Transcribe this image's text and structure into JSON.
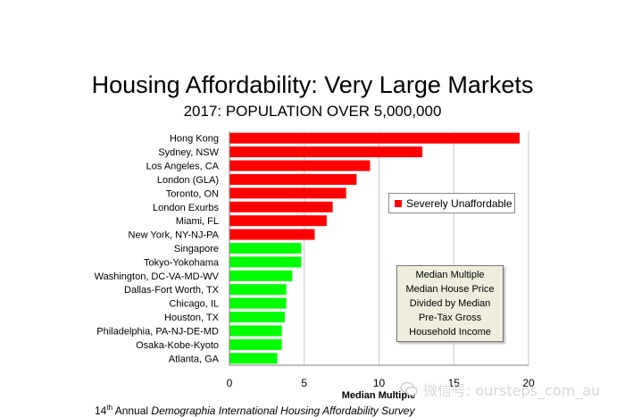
{
  "title": "Housing Affordability: Very Large Markets",
  "subtitle": "2017: POPULATION OVER 5,000,000",
  "legend": {
    "label": "Severely Unaffordable",
    "color": "#ff0000"
  },
  "note_box": [
    "Median Multiple",
    "Median House Price",
    "Divided by Median",
    "Pre-Tax Gross",
    "Household Income"
  ],
  "footer": {
    "ordinal": "14",
    "ordinal_suffix": "th",
    "prefix": "Annual",
    "italic": "Demographia International Housing Affordability Survey"
  },
  "watermark": {
    "text": "微信号: oursteps_com_au"
  },
  "chart_data": {
    "type": "bar",
    "orientation": "horizontal",
    "categories": [
      "Hong Kong",
      "Sydney, NSW",
      "Los Angeles, CA",
      "London (GLA)",
      "Toronto, ON",
      "London Exurbs",
      "Miami, FL",
      "New York, NY-NJ-PA",
      "Singapore",
      "Tokyo-Yokohama",
      "Washington, DC-VA-MD-WV",
      "Dallas-Fort Worth, TX",
      "Chicago, IL",
      "Houston, TX",
      "Philadelphia, PA-NJ-DE-MD",
      "Osaka-Kobe-Kyoto",
      "Atlanta, GA"
    ],
    "values": [
      19.4,
      12.9,
      9.4,
      8.5,
      7.8,
      6.9,
      6.5,
      5.7,
      4.8,
      4.8,
      4.2,
      3.8,
      3.8,
      3.7,
      3.5,
      3.5,
      3.2
    ],
    "colors": [
      "#ff0000",
      "#ff0000",
      "#ff0000",
      "#ff0000",
      "#ff0000",
      "#ff0000",
      "#ff0000",
      "#ff0000",
      "#00ff00",
      "#00ff00",
      "#00ff00",
      "#00ff00",
      "#00ff00",
      "#00ff00",
      "#00ff00",
      "#00ff00",
      "#00ff00"
    ],
    "xlim": [
      0,
      20
    ],
    "xticks": [
      0,
      5,
      10,
      15,
      20
    ],
    "xlabel": "Median Multiple",
    "ylabel": "",
    "grid": true,
    "legend_position": "right"
  }
}
